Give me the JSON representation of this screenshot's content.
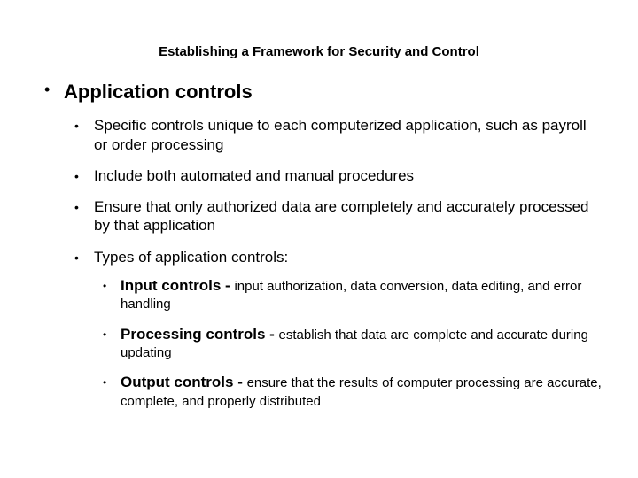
{
  "header": "Establishing a Framework for Security and Control",
  "mainTitle": "Application controls",
  "bullets": [
    "Specific controls unique to each computerized application, such as payroll or order processing",
    "Include both automated and manual procedures",
    "Ensure that only authorized data are completely and accurately processed by that application",
    "Types of application controls:"
  ],
  "types": [
    {
      "label": "Input controls - ",
      "desc": "input authorization, data conversion, data editing, and error handling"
    },
    {
      "label": "Processing controls - ",
      "desc": "establish that data are complete and accurate during updating"
    },
    {
      "label": "Output controls - ",
      "desc": "ensure that the results of computer processing are accurate, complete, and properly distributed"
    }
  ],
  "colors": {
    "background": "#ffffff",
    "text": "#000000"
  },
  "fonts": {
    "family": "Arial",
    "header_size": 15,
    "main_title_size": 22,
    "body_size": 17,
    "desc_size": 15
  }
}
